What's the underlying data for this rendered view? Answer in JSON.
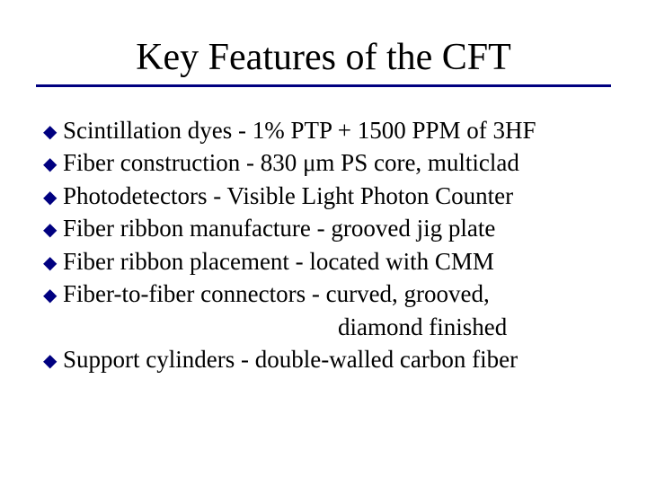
{
  "title": "Key Features of the CFT",
  "title_fontsize": 42,
  "body_fontsize": 27,
  "colors": {
    "text": "#000000",
    "bullet": "#000080",
    "rule": "#000080",
    "background": "#ffffff"
  },
  "bullet_glyph": "◆",
  "items": [
    {
      "text": "Scintillation dyes - 1% PTP + 1500 PPM of 3HF"
    },
    {
      "text": "Fiber construction - 830 μm PS core, multiclad"
    },
    {
      "text": "Photodetectors - Visible Light Photon Counter"
    },
    {
      "text": "Fiber ribbon manufacture - grooved jig plate"
    },
    {
      "text": "Fiber ribbon placement - located with CMM"
    },
    {
      "text": "Fiber-to-fiber connectors - curved, grooved,",
      "cont": "diamond finished"
    },
    {
      "text": "Support cylinders - double-walled carbon fiber"
    }
  ]
}
